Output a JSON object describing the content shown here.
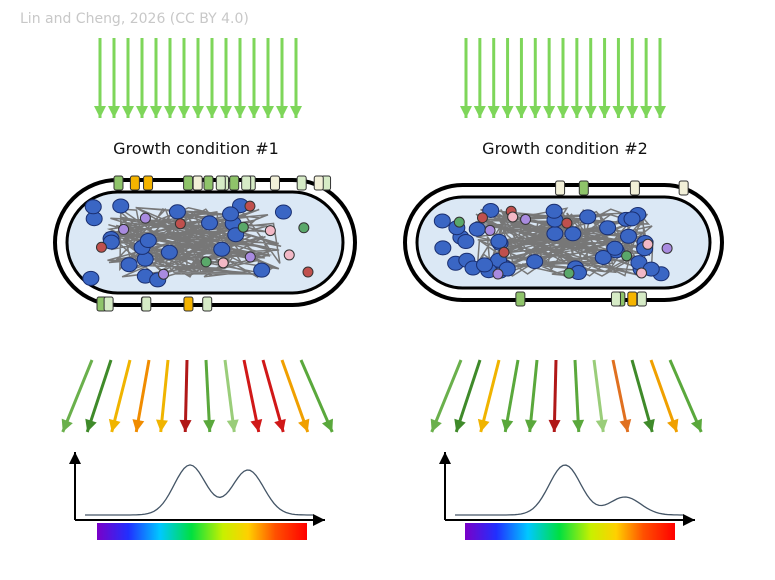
{
  "credit": "Lin and Cheng, 2026 (CC BY 4.0)",
  "panels": [
    {
      "label": "Growth condition #1"
    },
    {
      "label": "Growth condition #2"
    }
  ]
}
